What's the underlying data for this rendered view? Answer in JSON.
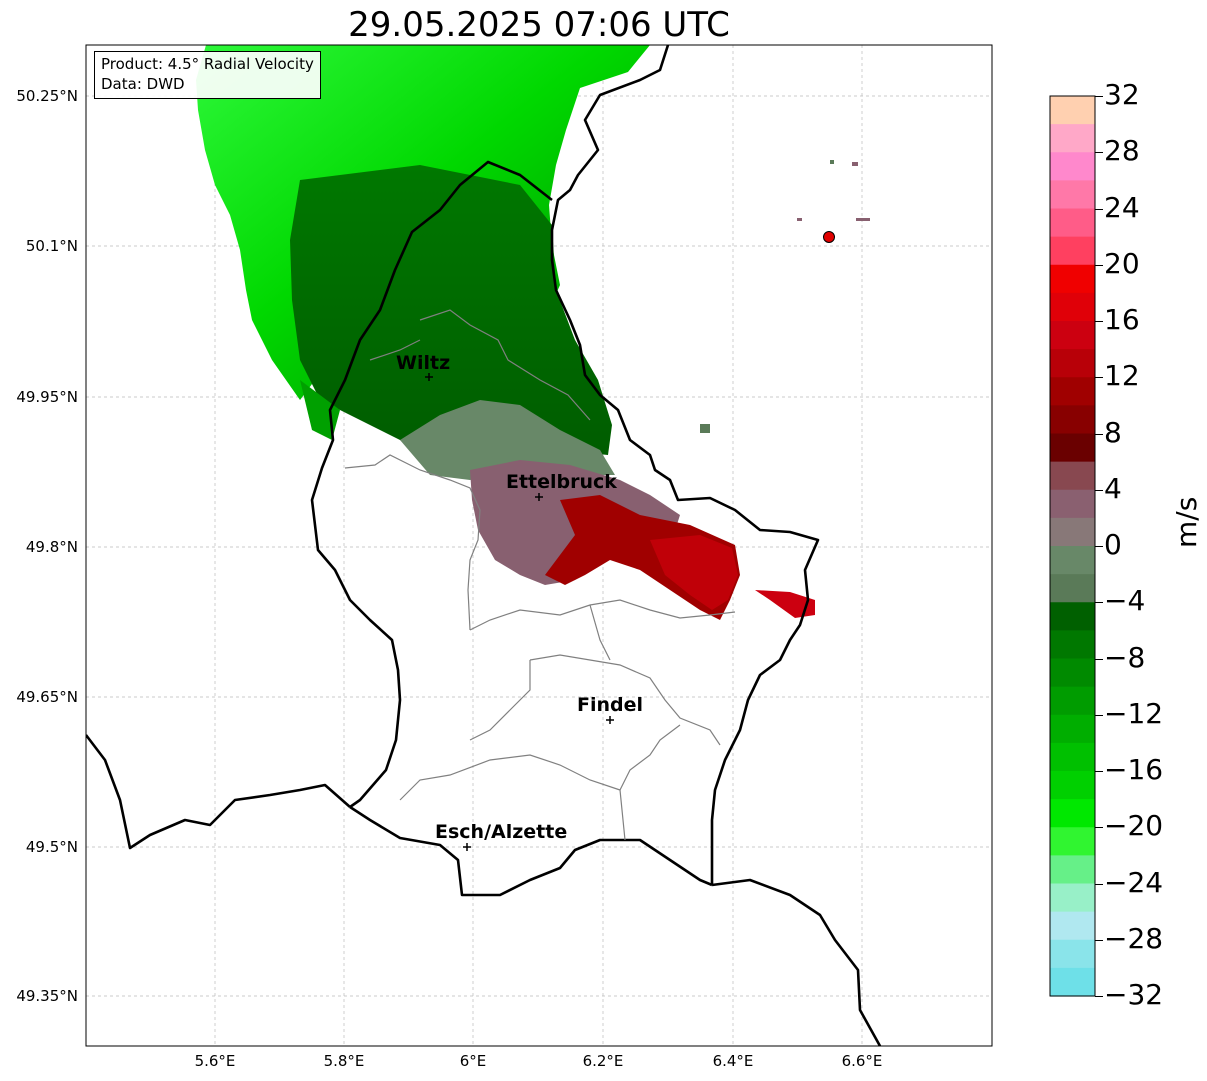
{
  "title": "29.05.2025 07:06 UTC",
  "info_box": {
    "product": "Product: 4.5° Radial Velocity",
    "data": "Data: DWD"
  },
  "axes": {
    "lat_ticks": [
      "50.25°N",
      "50.1°N",
      "49.95°N",
      "49.8°N",
      "49.65°N",
      "49.5°N",
      "49.35°N"
    ],
    "lon_ticks": [
      "5.6°E",
      "5.8°E",
      "6°E",
      "6.2°E",
      "6.4°E",
      "6.6°E"
    ],
    "grid": true
  },
  "cities": [
    {
      "name": "Wiltz"
    },
    {
      "name": "Ettelbruck"
    },
    {
      "name": "Findel"
    },
    {
      "name": "Esch/Alzette"
    }
  ],
  "colorbar": {
    "unit": "m/s",
    "min": -32,
    "max": 32,
    "tick_labels": [
      "32",
      "28",
      "24",
      "20",
      "16",
      "12",
      "8",
      "4",
      "0",
      "−4",
      "−8",
      "−12",
      "−16",
      "−20",
      "−24",
      "−28",
      "−32"
    ],
    "colors_top_to_bottom": [
      "#ffd0b0",
      "#ffa8c8",
      "#ff88cc",
      "#ff78a8",
      "#ff5c88",
      "#ff4060",
      "#f00000",
      "#e00008",
      "#cc0010",
      "#b80008",
      "#a00000",
      "#880000",
      "#6a0000",
      "#884850",
      "#8a6070",
      "#887878",
      "#688868",
      "#5a7a58",
      "#006000",
      "#007800",
      "#008a00",
      "#009c00",
      "#00ae00",
      "#00c000",
      "#00d000",
      "#00e800",
      "#30f530",
      "#66f088",
      "#98f0c8",
      "#b0e8f0",
      "#8ae4ea",
      "#6ee0e8"
    ]
  },
  "radar_site_color": "#e00000"
}
